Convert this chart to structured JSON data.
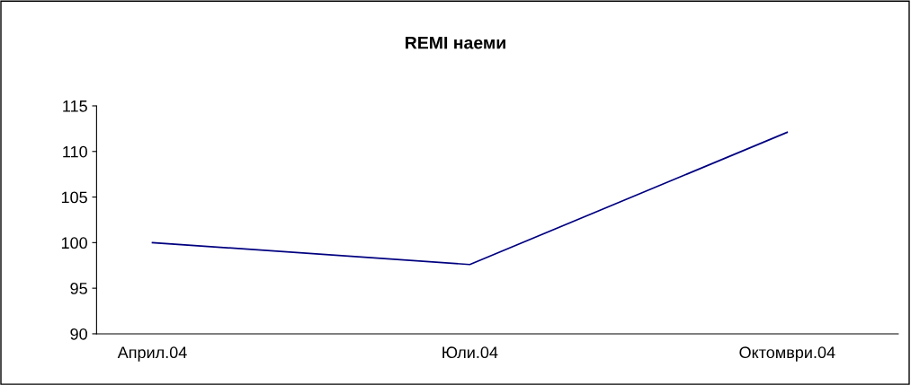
{
  "chart_data": {
    "type": "line",
    "title": "REMI наеми",
    "categories": [
      "Април.04",
      "Юли.04",
      "Октомври.04"
    ],
    "series": [
      {
        "color": "#000080",
        "values": [
          100,
          97.6,
          112.1
        ]
      }
    ],
    "ylim": [
      90,
      115
    ],
    "yticks": [
      90,
      95,
      100,
      105,
      110,
      115
    ],
    "grid": false,
    "legend": false,
    "marker": "none",
    "line_style": "solid"
  }
}
